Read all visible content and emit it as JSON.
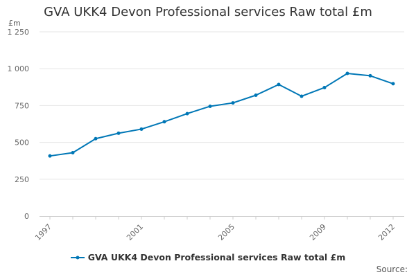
{
  "title": "GVA UKK4 Devon Professional services Raw total £m",
  "unit_label": "£m",
  "source_label": "Source:",
  "colors": {
    "series": "#0077b6",
    "grid": "#e6e6e6",
    "axis_text": "#666666"
  },
  "chart_data": {
    "type": "line",
    "title": "GVA UKK4 Devon Professional services Raw total £m",
    "xlabel": "",
    "ylabel": "£m",
    "x": [
      1997,
      1998,
      1999,
      2000,
      2001,
      2002,
      2003,
      2004,
      2005,
      2006,
      2007,
      2008,
      2009,
      2010,
      2011,
      2012
    ],
    "series": [
      {
        "name": "GVA UKK4 Devon Professional services Raw total £m",
        "values": [
          408,
          430,
          525,
          562,
          590,
          640,
          695,
          745,
          768,
          820,
          893,
          813,
          872,
          968,
          952,
          898
        ]
      }
    ],
    "ylim": [
      0,
      1250
    ],
    "yticks": [
      0,
      250,
      500,
      750,
      1000,
      1250
    ],
    "ytick_labels": [
      "0",
      "250",
      "500",
      "750",
      "1 000",
      "1 250"
    ],
    "xticks": [
      1997,
      2001,
      2005,
      2009,
      2012
    ],
    "xtick_labels": [
      "1997",
      "2001",
      "2005",
      "2009",
      "2012"
    ],
    "grid": true,
    "legend_position": "bottom-center"
  }
}
